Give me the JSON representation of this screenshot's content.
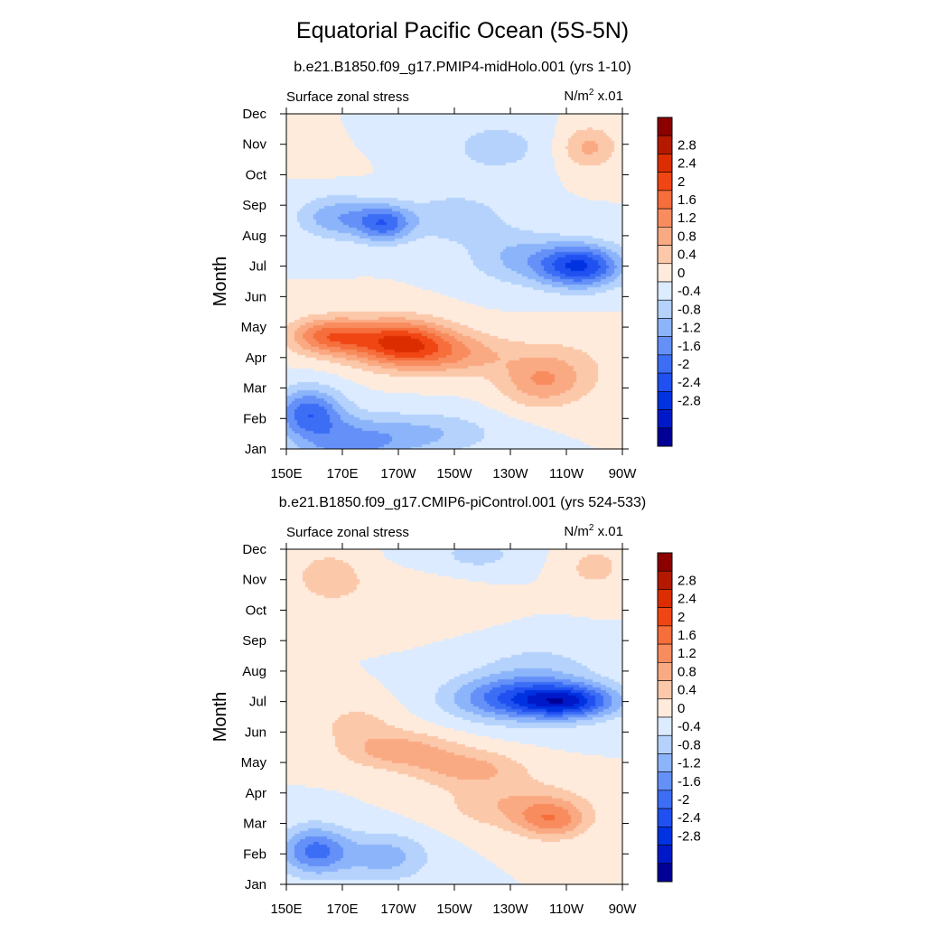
{
  "title": "Equatorial Pacific Ocean (5S-5N)",
  "colors": {
    "levels": [
      "#000096",
      "#0019C8",
      "#0032E1",
      "#2050F0",
      "#3C6EF5",
      "#6490F8",
      "#8CB4FA",
      "#B4D2FC",
      "#DCEBFF",
      "#FFEBDC",
      "#FCC8AA",
      "#FAAA82",
      "#F88C5F",
      "#F56E3C",
      "#F04614",
      "#DC2D00",
      "#B41900",
      "#8C0000"
    ]
  },
  "chart_data": [
    {
      "type": "contour",
      "subtitle": "b.e21.B1850.f09_g17.PMIP4-midHolo.001 (yrs 1-10)",
      "left_label": "Surface zonal stress",
      "right_label_unit": "N/m",
      "right_label_exp": "2",
      "right_label_scale": " x.01",
      "ylabel": "Month",
      "xlabel": "",
      "y_ticks": [
        "Jan",
        "Feb",
        "Mar",
        "Apr",
        "May",
        "Jun",
        "Jul",
        "Aug",
        "Sep",
        "Oct",
        "Nov",
        "Dec"
      ],
      "x_ticks": [
        "150E",
        "170E",
        "170W",
        "150W",
        "130W",
        "110W",
        "90W"
      ],
      "x_range_deg_east": [
        150,
        270
      ],
      "colorbar_labels": [
        "2.8",
        "2.4",
        "2",
        "1.6",
        "1.2",
        "0.8",
        "0.4",
        "0",
        "-0.4",
        "-0.8",
        "-1.2",
        "-1.6",
        "-2",
        "-2.4",
        "-2.8"
      ],
      "features": [
        {
          "lon": 172,
          "month": 0.1,
          "value": -1.2,
          "slon": 20,
          "smon": 0.9
        },
        {
          "lon": 158,
          "month": 1.2,
          "value": -1.8,
          "slon": 12,
          "smon": 0.8
        },
        {
          "lon": 200,
          "month": 0.5,
          "value": -0.8,
          "slon": 25,
          "smon": 0.7
        },
        {
          "lon": 190,
          "month": 3.5,
          "value": 2.3,
          "slon": 18,
          "smon": 0.75
        },
        {
          "lon": 165,
          "month": 3.7,
          "value": 1.7,
          "slon": 14,
          "smon": 0.6
        },
        {
          "lon": 210,
          "month": 3.1,
          "value": 1.0,
          "slon": 22,
          "smon": 0.7
        },
        {
          "lon": 240,
          "month": 2.2,
          "value": 0.9,
          "slon": 14,
          "smon": 0.8
        },
        {
          "lon": 250,
          "month": 2.6,
          "value": 0.5,
          "slon": 18,
          "smon": 1.1
        },
        {
          "lon": 255,
          "month": 6.0,
          "value": -2.4,
          "slon": 15,
          "smon": 0.7
        },
        {
          "lon": 232,
          "month": 6.3,
          "value": -0.8,
          "slon": 18,
          "smon": 0.9
        },
        {
          "lon": 185,
          "month": 7.4,
          "value": -1.7,
          "slon": 10,
          "smon": 0.6
        },
        {
          "lon": 168,
          "month": 7.6,
          "value": -1.1,
          "slon": 14,
          "smon": 0.7
        },
        {
          "lon": 210,
          "month": 7.6,
          "value": -0.7,
          "slon": 18,
          "smon": 0.8
        },
        {
          "lon": 225,
          "month": 9.9,
          "value": -0.6,
          "slon": 18,
          "smon": 0.9
        },
        {
          "lon": 180,
          "month": 10.6,
          "value": -0.5,
          "slon": 14,
          "smon": 0.8
        },
        {
          "lon": 258,
          "month": 9.9,
          "value": 0.9,
          "slon": 10,
          "smon": 0.7
        },
        {
          "lon": 165,
          "month": 10.3,
          "value": 0.4,
          "slon": 15,
          "smon": 0.9
        }
      ]
    },
    {
      "type": "contour",
      "subtitle": "b.e21.B1850.f09_g17.CMIP6-piControl.001 (yrs 524-533)",
      "left_label": "Surface zonal stress",
      "right_label_unit": "N/m",
      "right_label_exp": "2",
      "right_label_scale": " x.01",
      "ylabel": "Month",
      "xlabel": "",
      "y_ticks": [
        "Jan",
        "Feb",
        "Mar",
        "Apr",
        "May",
        "Jun",
        "Jul",
        "Aug",
        "Sep",
        "Oct",
        "Nov",
        "Dec"
      ],
      "x_ticks": [
        "150E",
        "170E",
        "170W",
        "150W",
        "130W",
        "110W",
        "90W"
      ],
      "x_range_deg_east": [
        150,
        270
      ],
      "colorbar_labels": [
        "2.8",
        "2.4",
        "2",
        "1.6",
        "1.2",
        "0.8",
        "0.4",
        "0",
        "-0.4",
        "-0.8",
        "-1.2",
        "-1.6",
        "-2",
        "-2.4",
        "-2.8"
      ],
      "features": [
        {
          "lon": 160,
          "month": 1.1,
          "value": -1.7,
          "slon": 12,
          "smon": 0.8
        },
        {
          "lon": 185,
          "month": 0.9,
          "value": -1.0,
          "slon": 16,
          "smon": 0.8
        },
        {
          "lon": 190,
          "month": 4.4,
          "value": 1.0,
          "slon": 20,
          "smon": 0.6
        },
        {
          "lon": 215,
          "month": 3.8,
          "value": 0.9,
          "slon": 20,
          "smon": 0.6
        },
        {
          "lon": 245,
          "month": 2.1,
          "value": 1.2,
          "slon": 12,
          "smon": 0.6
        },
        {
          "lon": 232,
          "month": 2.6,
          "value": 0.8,
          "slon": 25,
          "smon": 0.8
        },
        {
          "lon": 175,
          "month": 5.3,
          "value": 0.5,
          "slon": 15,
          "smon": 0.7
        },
        {
          "lon": 250,
          "month": 6.0,
          "value": -2.4,
          "slon": 18,
          "smon": 0.55
        },
        {
          "lon": 225,
          "month": 6.1,
          "value": -1.2,
          "slon": 20,
          "smon": 0.7
        },
        {
          "lon": 240,
          "month": 6.6,
          "value": -0.8,
          "slon": 22,
          "smon": 1.2
        },
        {
          "lon": 165,
          "month": 10.1,
          "value": 0.7,
          "slon": 12,
          "smon": 0.8
        },
        {
          "lon": 200,
          "month": 9.4,
          "value": 0.4,
          "slon": 25,
          "smon": 0.8
        },
        {
          "lon": 218,
          "month": 10.8,
          "value": -0.5,
          "slon": 20,
          "smon": 0.8
        },
        {
          "lon": 260,
          "month": 10.4,
          "value": 0.5,
          "slon": 14,
          "smon": 0.9
        }
      ]
    }
  ]
}
